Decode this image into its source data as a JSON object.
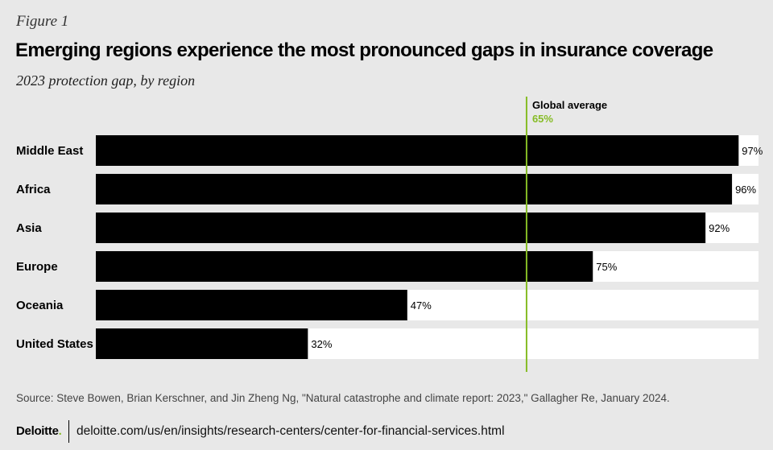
{
  "figure_label": "Figure 1",
  "title": "Emerging regions experience the most pronounced gaps in insurance coverage",
  "subtitle": "2023 protection gap, by region",
  "chart_data": {
    "type": "bar",
    "orientation": "horizontal",
    "categories": [
      "Middle East",
      "Africa",
      "Asia",
      "Europe",
      "Oceania",
      "United States"
    ],
    "values": [
      97,
      96,
      92,
      75,
      47,
      32
    ],
    "value_labels": [
      "97%",
      "96%",
      "92%",
      "75%",
      "47%",
      "32%"
    ],
    "xlim": [
      0,
      100
    ],
    "reference_line": {
      "label": "Global average",
      "value": 65,
      "value_label": "65%",
      "color": "#86bc25"
    },
    "colors": {
      "bar": "#000000",
      "track": "#ffffff"
    },
    "grid": false,
    "legend": "none"
  },
  "source": "Source: Steve Bowen, Brian Kerschner, and Jin Zheng Ng, \"Natural catastrophe and climate report: 2023,\" Gallagher Re, January 2024.",
  "footer": {
    "logo_text": "Deloitte",
    "logo_dot": ".",
    "url": "deloitte.com/us/en/insights/research-centers/center-for-financial-services.html"
  }
}
